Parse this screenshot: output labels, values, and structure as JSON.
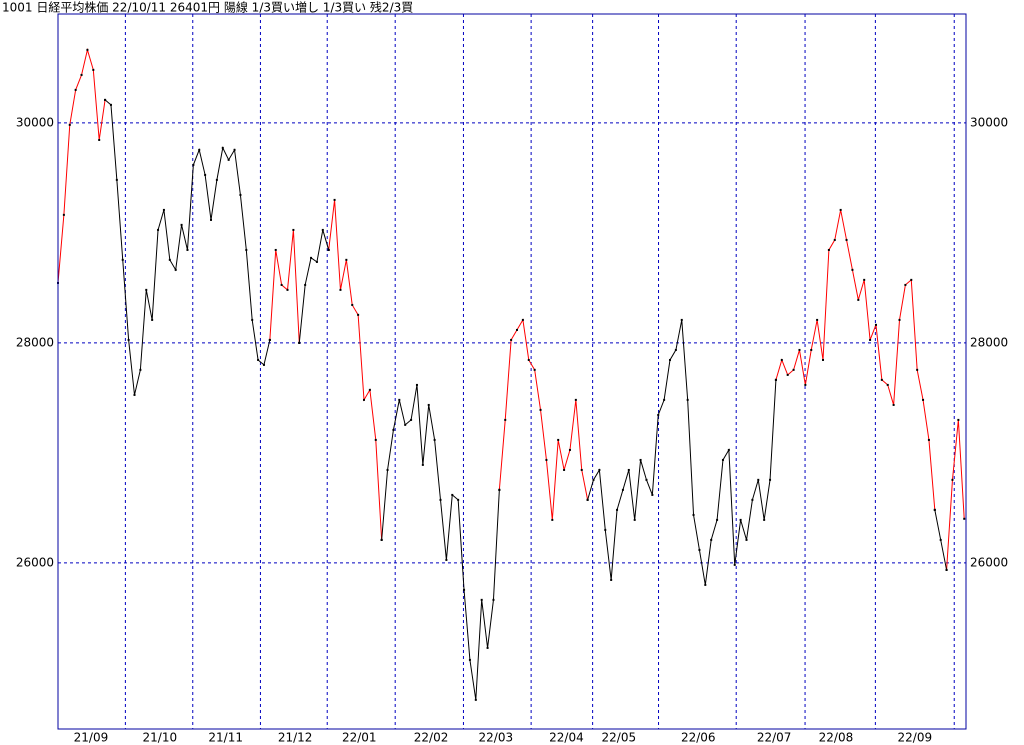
{
  "chart_data": {
    "type": "line",
    "title": "1001 日経平均株価 22/10/11 26401円 陽線 1/3買い増し 1/3買い 残2/3買",
    "xlim": [
      0,
      154.3
    ],
    "ylim": [
      24490,
      30990
    ],
    "xticks": [
      {
        "value": 5.6,
        "label": "21/09"
      },
      {
        "value": 17.3,
        "label": "21/10"
      },
      {
        "value": 28.5,
        "label": "21/11"
      },
      {
        "value": 40.3,
        "label": "21/12"
      },
      {
        "value": 51.2,
        "label": "22/01"
      },
      {
        "value": 63.4,
        "label": "22/02"
      },
      {
        "value": 74.4,
        "label": "22/03"
      },
      {
        "value": 86.4,
        "label": "22/04"
      },
      {
        "value": 95.3,
        "label": "22/05"
      },
      {
        "value": 108.8,
        "label": "22/06"
      },
      {
        "value": 121.7,
        "label": "22/07"
      },
      {
        "value": 132.2,
        "label": "22/08"
      },
      {
        "value": 145.6,
        "label": "22/09"
      }
    ],
    "yticks": [
      26000,
      28000,
      30000
    ],
    "grid": true,
    "series": [
      {
        "color": "#ff0000",
        "values": [
          28545,
          29164,
          29982,
          30300,
          30436,
          30664,
          30482,
          29845,
          30209,
          null,
          null,
          null,
          null,
          null,
          null,
          null,
          null,
          null,
          null,
          null,
          null,
          null,
          null,
          null,
          null,
          null,
          null,
          null,
          null,
          null,
          null,
          null,
          null,
          null,
          null,
          null,
          28027,
          28845,
          28527,
          28482,
          29027,
          28000,
          null,
          null,
          null,
          null,
          28845,
          29300,
          28482,
          28755,
          28345,
          28255,
          27482,
          27573,
          27118,
          26209,
          null,
          null,
          null,
          null,
          null,
          null,
          null,
          null,
          null,
          null,
          null,
          null,
          null,
          null,
          null,
          null,
          null,
          null,
          null,
          26664,
          27300,
          28027,
          28118,
          28209,
          27845,
          27755,
          27391,
          26936,
          26391,
          27118,
          26845,
          27027,
          27482,
          26845,
          26573,
          null,
          null,
          null,
          null,
          null,
          null,
          null,
          null,
          null,
          null,
          null,
          null,
          null,
          null,
          null,
          null,
          null,
          null,
          null,
          null,
          null,
          null,
          null,
          null,
          null,
          null,
          null,
          null,
          null,
          null,
          null,
          27664,
          27845,
          27709,
          27755,
          27936,
          27618,
          27936,
          28209,
          27845,
          28845,
          28936,
          29209,
          28936,
          28664,
          28391,
          28573,
          28027,
          28164,
          27664,
          27618,
          27436,
          28209,
          28527,
          28573,
          27755,
          27482,
          27118,
          26482,
          null,
          25936,
          26755,
          27300,
          26401
        ]
      },
      {
        "color": "#000000",
        "values": [
          null,
          null,
          null,
          null,
          null,
          null,
          null,
          null,
          30209,
          30164,
          29482,
          28755,
          28027,
          27527,
          27755,
          28482,
          28209,
          29027,
          29209,
          28755,
          28664,
          29073,
          28845,
          29618,
          29755,
          29527,
          29118,
          29482,
          29773,
          29664,
          29755,
          29345,
          28845,
          28209,
          27845,
          27800,
          28027,
          null,
          null,
          null,
          null,
          28000,
          28527,
          28773,
          28736,
          29027,
          28845,
          null,
          null,
          null,
          null,
          null,
          null,
          null,
          null,
          26209,
          26845,
          27209,
          27482,
          27255,
          27300,
          27618,
          26891,
          27436,
          27118,
          26573,
          26027,
          26618,
          26573,
          25755,
          25118,
          24755,
          25664,
          25227,
          25664,
          26664,
          null,
          null,
          null,
          null,
          null,
          null,
          null,
          null,
          null,
          null,
          null,
          null,
          null,
          null,
          26573,
          26755,
          26845,
          26300,
          25845,
          26482,
          26664,
          26845,
          26391,
          26936,
          26755,
          26618,
          27345,
          27482,
          27845,
          27936,
          28209,
          27482,
          26436,
          26118,
          25800,
          26209,
          26391,
          26936,
          27027,
          25982,
          26391,
          26209,
          26573,
          26755,
          26391,
          26755,
          27664,
          null,
          null,
          null,
          null,
          null,
          null,
          null,
          null,
          null,
          null,
          null,
          null,
          null,
          null,
          null,
          null,
          null,
          null,
          null,
          null,
          null,
          null,
          null,
          null,
          null,
          null,
          26482,
          26209,
          25936,
          null,
          null,
          null
        ]
      }
    ]
  }
}
